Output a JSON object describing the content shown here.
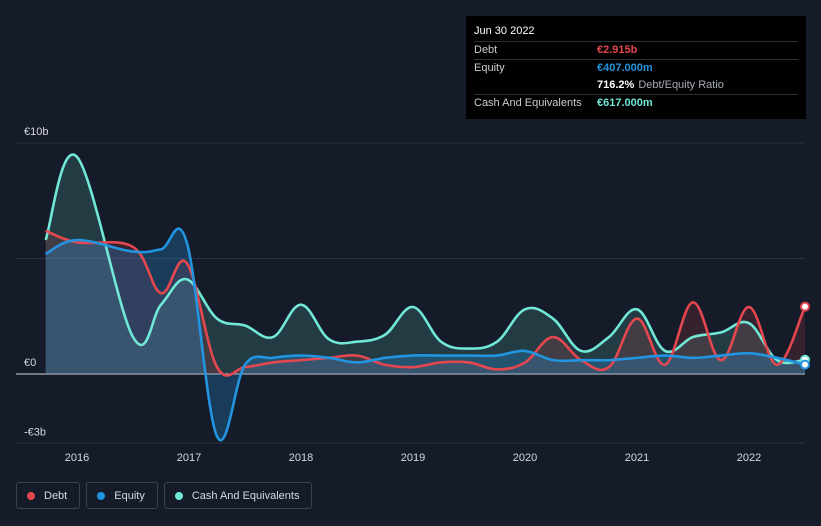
{
  "tooltip": {
    "date": "Jun 30 2022",
    "rows": [
      {
        "label": "Debt",
        "value": "€2.915b",
        "color": "#e5474f"
      },
      {
        "label": "Equity",
        "value": "€407.000m",
        "color": "#2394df"
      },
      {
        "label": "",
        "value": "716.2%",
        "sub": "Debt/Equity Ratio",
        "color": "#ffffff"
      },
      {
        "label": "Cash And Equivalents",
        "value": "€617.000m",
        "color": "#71e7d6"
      }
    ]
  },
  "legend": [
    {
      "label": "Debt",
      "color": "#e5474f"
    },
    {
      "label": "Equity",
      "color": "#2394df"
    },
    {
      "label": "Cash And Equivalents",
      "color": "#71e7d6"
    }
  ],
  "chart_data": {
    "type": "area",
    "unit": "€b",
    "ylim": [
      -3,
      10
    ],
    "y_tick_labels": [
      {
        "value": 10,
        "label": "€10b"
      },
      {
        "value": 0,
        "label": "€0"
      },
      {
        "value": -3,
        "label": "-€3b"
      }
    ],
    "xlim": [
      2015.5,
      2022.5
    ],
    "x_tick_labels": [
      "2016",
      "2017",
      "2018",
      "2019",
      "2020",
      "2021",
      "2022"
    ],
    "series": [
      {
        "name": "Debt",
        "color": "#e5474f",
        "x": [
          2015.72,
          2016.0,
          2016.5,
          2016.75,
          2016.98,
          2017.25,
          2017.5,
          2017.75,
          2018.0,
          2018.25,
          2018.5,
          2018.75,
          2019.0,
          2019.25,
          2019.5,
          2019.75,
          2020.0,
          2020.25,
          2020.5,
          2020.75,
          2021.0,
          2021.25,
          2021.5,
          2021.75,
          2022.0,
          2022.25,
          2022.5
        ],
        "values": [
          6.2,
          5.7,
          5.5,
          3.5,
          4.8,
          0.3,
          0.3,
          0.5,
          0.6,
          0.7,
          0.8,
          0.4,
          0.3,
          0.5,
          0.5,
          0.2,
          0.5,
          1.6,
          0.6,
          0.3,
          2.4,
          0.4,
          3.1,
          0.6,
          2.9,
          0.4,
          2.915
        ]
      },
      {
        "name": "Equity",
        "color": "#2394df",
        "x": [
          2015.72,
          2016.0,
          2016.5,
          2016.75,
          2016.98,
          2017.25,
          2017.5,
          2017.75,
          2018.0,
          2018.25,
          2018.5,
          2018.75,
          2019.0,
          2019.25,
          2019.5,
          2019.75,
          2020.0,
          2020.25,
          2020.5,
          2020.75,
          2021.0,
          2021.25,
          2021.5,
          2021.75,
          2022.0,
          2022.25,
          2022.5
        ],
        "values": [
          5.2,
          5.8,
          5.3,
          5.4,
          5.7,
          -2.7,
          0.4,
          0.7,
          0.8,
          0.7,
          0.5,
          0.7,
          0.8,
          0.8,
          0.8,
          0.8,
          1.0,
          0.6,
          0.6,
          0.6,
          0.7,
          0.8,
          0.7,
          0.8,
          0.9,
          0.7,
          0.407
        ]
      },
      {
        "name": "Cash And Equivalents",
        "color": "#71e7d6",
        "x": [
          2015.72,
          2016.0,
          2016.5,
          2016.75,
          2016.98,
          2017.25,
          2017.5,
          2017.75,
          2018.0,
          2018.25,
          2018.5,
          2018.75,
          2019.0,
          2019.25,
          2019.5,
          2019.75,
          2020.0,
          2020.25,
          2020.5,
          2020.75,
          2021.0,
          2021.25,
          2021.5,
          2021.75,
          2022.0,
          2022.25,
          2022.5
        ],
        "values": [
          5.8,
          9.4,
          1.6,
          3.0,
          4.1,
          2.4,
          2.1,
          1.6,
          3.0,
          1.5,
          1.4,
          1.7,
          2.9,
          1.4,
          1.1,
          1.4,
          2.8,
          2.4,
          1.0,
          1.6,
          2.8,
          1.0,
          1.6,
          1.8,
          2.2,
          0.6,
          0.617
        ]
      }
    ]
  }
}
